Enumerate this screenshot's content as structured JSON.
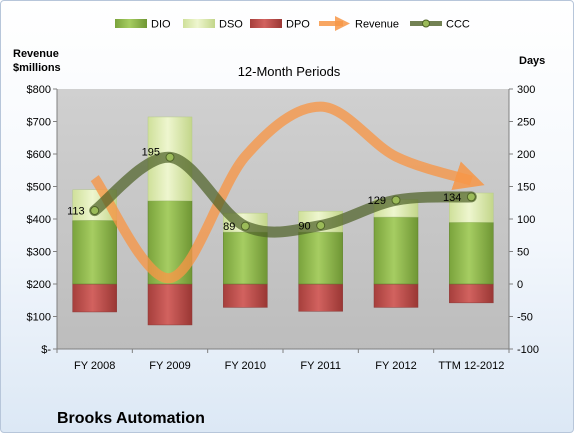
{
  "company": "Brooks Automation",
  "colors": {
    "dio": "#8fb84c",
    "dso": "#dceaa8",
    "dpo": "#c0504d",
    "revenue": "#f79646",
    "ccc": "#4f6228",
    "plot_bg": "#c9c9c9"
  },
  "legend": [
    {
      "key": "dio",
      "label": "DIO",
      "kind": "box"
    },
    {
      "key": "dso",
      "label": "DSO",
      "kind": "box"
    },
    {
      "key": "dpo",
      "label": "DPO",
      "kind": "box"
    },
    {
      "key": "revenue",
      "label": "Revenue",
      "kind": "arrow"
    },
    {
      "key": "ccc",
      "label": "CCC",
      "kind": "line"
    }
  ],
  "chart_data": {
    "type": "bar",
    "title": "12-Month Periods",
    "categories": [
      "FY 2008",
      "FY 2009",
      "FY 2010",
      "FY 2011",
      "FY 2012",
      "TTM 12-2012"
    ],
    "left_axis": {
      "label_line1": "Revenue",
      "label_line2": "$millions",
      "ylim": [
        0,
        800
      ],
      "ticks": [
        0,
        100,
        200,
        300,
        400,
        500,
        600,
        700,
        800
      ],
      "tick_labels": [
        "$-",
        "$100",
        "$200",
        "$300",
        "$400",
        "$500",
        "$600",
        "$700",
        "$800"
      ]
    },
    "right_axis": {
      "label": "Days",
      "ylim": [
        -100,
        300
      ],
      "ticks": [
        -100,
        -50,
        0,
        50,
        100,
        150,
        200,
        250,
        300
      ]
    },
    "series": [
      {
        "name": "DIO",
        "axis": "right",
        "values": [
          98,
          128,
          80,
          80,
          103,
          95
        ]
      },
      {
        "name": "DSO",
        "axis": "right",
        "values": [
          47,
          129,
          29,
          32,
          27,
          45
        ]
      },
      {
        "name": "DPO",
        "axis": "right",
        "values": [
          -43,
          -63,
          -36,
          -42,
          -36,
          -29
        ]
      },
      {
        "name": "Revenue",
        "axis": "left",
        "values": [
          526,
          218,
          593,
          746,
          592,
          518
        ]
      },
      {
        "name": "CCC",
        "axis": "right",
        "values": [
          113,
          195,
          89,
          90,
          129,
          134
        ]
      }
    ],
    "ccc_labels": [
      "113",
      "195",
      "89",
      "90",
      "129",
      "134"
    ]
  }
}
